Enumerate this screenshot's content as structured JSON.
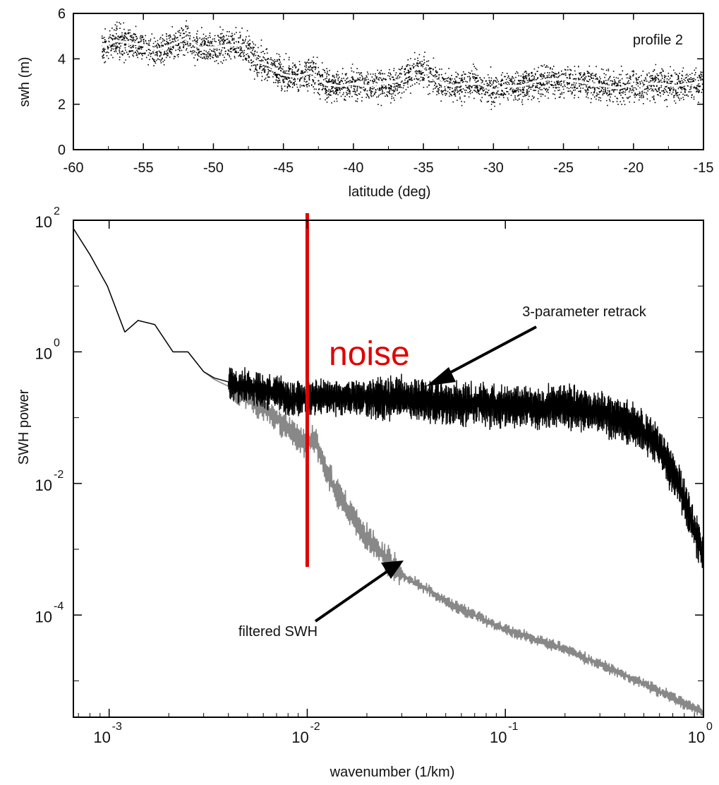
{
  "chart_data": [
    {
      "type": "scatter",
      "annotation": "profile 2",
      "xlabel": "latitude (deg)",
      "ylabel": "swh (m)",
      "xlim": [
        -60,
        -15
      ],
      "ylim": [
        0,
        6
      ],
      "x_ticks": [
        -60,
        -55,
        -50,
        -45,
        -40,
        -35,
        -30,
        -25,
        -20,
        -15
      ],
      "y_ticks": [
        0,
        2,
        4,
        6
      ],
      "grid": false,
      "scatter_color": "#000000",
      "line_color": "#ffffff",
      "series": [
        {
          "name": "",
          "style": "line",
          "x": [
            -58,
            -57,
            -56,
            -55,
            -54,
            -53,
            -52,
            -51,
            -50,
            -49,
            -48,
            -47.5,
            -47,
            -46,
            -45,
            -44,
            -43,
            -42,
            -41,
            -40,
            -39,
            -38,
            -37,
            -36,
            -35.5,
            -35,
            -34,
            -33,
            -32,
            -31,
            -30,
            -29,
            -28,
            -27,
            -26,
            -25,
            -24,
            -23,
            -22,
            -21,
            -20,
            -19.5,
            -19,
            -18,
            -17,
            -16,
            -15
          ],
          "y": [
            4.5,
            4.8,
            4.7,
            4.6,
            4.4,
            4.6,
            4.9,
            4.5,
            4.5,
            4.6,
            4.6,
            4.3,
            3.9,
            3.7,
            3.3,
            3.2,
            3.4,
            2.9,
            2.8,
            2.9,
            2.8,
            2.9,
            3.0,
            3.3,
            3.6,
            3.5,
            3.0,
            2.8,
            2.9,
            2.9,
            2.6,
            2.8,
            2.8,
            3.0,
            3.1,
            3.1,
            3.0,
            2.9,
            2.8,
            2.7,
            2.9,
            2.6,
            2.9,
            2.9,
            2.8,
            2.9,
            3.0
          ]
        }
      ]
    },
    {
      "type": "line",
      "xlabel": "wavenumber (1/km)",
      "ylabel": "SWH power",
      "xscale": "log",
      "yscale": "log",
      "xlim": [
        0.00066,
        1.0
      ],
      "ylim": [
        2.8e-06,
        100
      ],
      "x_tick_labels": [
        "10^-3",
        "10^-2",
        "10^-1",
        "10^0"
      ],
      "y_tick_labels": [
        "10^2",
        "10^0",
        "10^-2",
        "10^-4"
      ],
      "grid": false,
      "cutoff_x": 0.01,
      "cutoff_color": "#e00000",
      "noise_label": "noise",
      "series": [
        {
          "name": "3-parameter retrack",
          "color": "#000000",
          "x": [
            0.00066,
            0.0008,
            0.00098,
            0.0012,
            0.0014,
            0.0017,
            0.0021,
            0.0025,
            0.003,
            0.0034,
            0.004,
            0.0045,
            0.005,
            0.006,
            0.007,
            0.008,
            0.009,
            0.01,
            0.012,
            0.014,
            0.017,
            0.02,
            0.025,
            0.03,
            0.04,
            0.05,
            0.07,
            0.1,
            0.15,
            0.2,
            0.3,
            0.4,
            0.5,
            0.6,
            0.7,
            0.8,
            0.9,
            1.0
          ],
          "y": [
            75,
            30,
            10,
            2.0,
            3.0,
            2.6,
            1.0,
            1.0,
            0.5,
            0.4,
            0.35,
            0.3,
            0.3,
            0.25,
            0.24,
            0.2,
            0.19,
            0.2,
            0.21,
            0.2,
            0.2,
            0.2,
            0.2,
            0.2,
            0.18,
            0.17,
            0.16,
            0.15,
            0.14,
            0.15,
            0.12,
            0.09,
            0.06,
            0.035,
            0.015,
            0.006,
            0.002,
            0.0007
          ]
        },
        {
          "name": "filtered SWH",
          "color": "#888888",
          "x": [
            0.00066,
            0.0008,
            0.00098,
            0.0012,
            0.0014,
            0.0017,
            0.0021,
            0.0025,
            0.003,
            0.0034,
            0.004,
            0.0045,
            0.005,
            0.006,
            0.007,
            0.008,
            0.009,
            0.01,
            0.011,
            0.012,
            0.013,
            0.014,
            0.016,
            0.02,
            0.025,
            0.03,
            0.04,
            0.05,
            0.07,
            0.1,
            0.15,
            0.2,
            0.3,
            0.5,
            0.7,
            1.0
          ],
          "y": [
            75,
            30,
            10,
            2.0,
            3.0,
            2.6,
            1.0,
            1.0,
            0.5,
            0.38,
            0.3,
            0.24,
            0.2,
            0.14,
            0.1,
            0.07,
            0.05,
            0.04,
            0.05,
            0.02,
            0.012,
            0.008,
            0.004,
            0.0015,
            0.0007,
            0.0004,
            0.00025,
            0.00016,
            0.0001,
            6e-05,
            4e-05,
            3e-05,
            1.8e-05,
            9e-06,
            5.5e-06,
            3.3e-06
          ]
        }
      ]
    }
  ]
}
